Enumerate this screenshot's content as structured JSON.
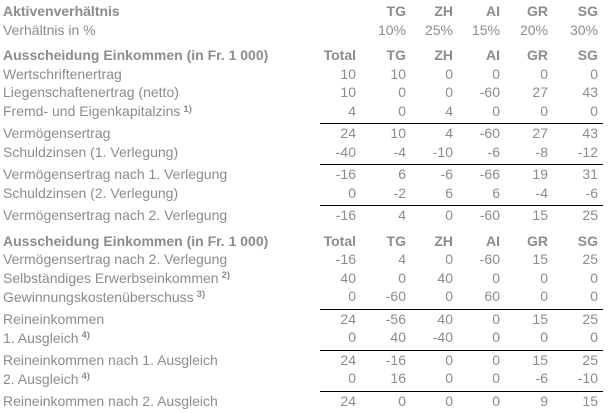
{
  "page": {
    "background": "#ffffff",
    "text_color": "#8c8c8c",
    "rule_color": "#000000",
    "title": "Aktivenverhältnis"
  },
  "table": {
    "column_keys": [
      "label",
      "Total",
      "TG",
      "ZH",
      "AI",
      "GR",
      "SG"
    ],
    "rows": [
      {
        "type": "header",
        "bold": true,
        "section": false,
        "rule": false,
        "label": "Aktivenverhältnis",
        "values": [
          "",
          "TG",
          "ZH",
          "AI",
          "GR",
          "SG"
        ]
      },
      {
        "type": "data",
        "bold": false,
        "section": false,
        "rule": false,
        "label": "Verhältnis in %",
        "values": [
          "",
          "10%",
          "25%",
          "15%",
          "20%",
          "30%"
        ]
      },
      {
        "type": "header",
        "bold": true,
        "section": true,
        "rule": false,
        "label": "Ausscheidung Einkommen (in Fr. 1 000)",
        "values": [
          "Total",
          "TG",
          "ZH",
          "AI",
          "GR",
          "SG"
        ]
      },
      {
        "type": "data",
        "bold": false,
        "section": false,
        "rule": false,
        "label": "Wertschriftenertrag",
        "values": [
          "10",
          "10",
          "0",
          "0",
          "0",
          "0"
        ]
      },
      {
        "type": "data",
        "bold": false,
        "section": false,
        "rule": false,
        "label": "Liegenschaftenertrag (netto)",
        "values": [
          "10",
          "0",
          "0",
          "-60",
          "27",
          "43"
        ]
      },
      {
        "type": "data",
        "bold": false,
        "section": false,
        "rule": true,
        "label": "Fremd- und Eigenkapitalzins",
        "sup": "1)",
        "values": [
          "4",
          "0",
          "4",
          "0",
          "0",
          "0"
        ]
      },
      {
        "type": "data",
        "bold": false,
        "section": false,
        "rule": false,
        "label": "Vermögensertrag",
        "values": [
          "24",
          "10",
          "4",
          "-60",
          "27",
          "43"
        ]
      },
      {
        "type": "data",
        "bold": false,
        "section": false,
        "rule": true,
        "label": "Schuldzinsen (1. Verlegung)",
        "values": [
          "-40",
          "-4",
          "-10",
          "-6",
          "-8",
          "-12"
        ]
      },
      {
        "type": "data",
        "bold": false,
        "section": false,
        "rule": false,
        "label": "Vermögensertrag nach 1. Verlegung",
        "values": [
          "-16",
          "6",
          "-6",
          "-66",
          "19",
          "31"
        ]
      },
      {
        "type": "data",
        "bold": false,
        "section": false,
        "rule": true,
        "label": "Schuldzinsen (2. Verlegung)",
        "values": [
          "0",
          "-2",
          "6",
          "6",
          "-4",
          "-6"
        ]
      },
      {
        "type": "data",
        "bold": false,
        "section": false,
        "rule": false,
        "label": "Vermögensertrag nach 2. Verlegung",
        "values": [
          "-16",
          "4",
          "0",
          "-60",
          "15",
          "25"
        ]
      },
      {
        "type": "header",
        "bold": true,
        "section": true,
        "rule": false,
        "label": "Ausscheidung Einkommen (in Fr. 1 000)",
        "values": [
          "Total",
          "TG",
          "ZH",
          "AI",
          "GR",
          "SG"
        ]
      },
      {
        "type": "data",
        "bold": false,
        "section": false,
        "rule": false,
        "label": "Vermögensertrag nach 2. Verlegung",
        "values": [
          "-16",
          "4",
          "0",
          "-60",
          "15",
          "25"
        ]
      },
      {
        "type": "data",
        "bold": false,
        "section": false,
        "rule": false,
        "label": "Selbständiges Erwerbseinkommen",
        "sup": "2)",
        "values": [
          "40",
          "0",
          "40",
          "0",
          "0",
          "0"
        ]
      },
      {
        "type": "data",
        "bold": false,
        "section": false,
        "rule": true,
        "label": "Gewinnungskostenüberschuss",
        "sup": "3)",
        "values": [
          "0",
          "-60",
          "0",
          "60",
          "0",
          "0"
        ]
      },
      {
        "type": "data",
        "bold": false,
        "section": false,
        "rule": false,
        "label": "Reineinkommen",
        "values": [
          "24",
          "-56",
          "40",
          "0",
          "15",
          "25"
        ]
      },
      {
        "type": "data",
        "bold": false,
        "section": false,
        "rule": true,
        "label": "1. Ausgleich",
        "sup": "4)",
        "values": [
          "0",
          "40",
          "-40",
          "0",
          "0",
          "0"
        ]
      },
      {
        "type": "data",
        "bold": false,
        "section": false,
        "rule": false,
        "label": "Reineinkommen nach 1. Ausgleich",
        "values": [
          "24",
          "-16",
          "0",
          "0",
          "15",
          "25"
        ]
      },
      {
        "type": "data",
        "bold": false,
        "section": false,
        "rule": true,
        "label": "2. Ausgleich",
        "sup": "4)",
        "values": [
          "0",
          "16",
          "0",
          "0",
          "-6",
          "-10"
        ]
      },
      {
        "type": "data",
        "bold": false,
        "section": false,
        "rule": false,
        "label": "Reineinkommen nach 2. Ausgleich",
        "values": [
          "24",
          "0",
          "0",
          "0",
          "9",
          "15"
        ]
      }
    ]
  }
}
